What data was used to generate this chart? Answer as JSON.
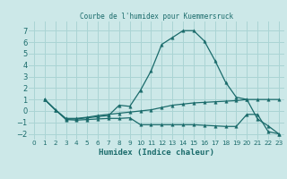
{
  "title": "Courbe de l'humidex pour Kuemmersruck",
  "xlabel": "Humidex (Indice chaleur)",
  "ylabel": "",
  "background_color": "#cce8e8",
  "grid_color": "#aad4d4",
  "line_color": "#1a6b6b",
  "xlim": [
    -0.5,
    23.5
  ],
  "ylim": [
    -2.5,
    7.8
  ],
  "xticks": [
    0,
    1,
    2,
    3,
    4,
    5,
    6,
    7,
    8,
    9,
    10,
    11,
    12,
    13,
    14,
    15,
    16,
    17,
    18,
    19,
    20,
    21,
    22,
    23
  ],
  "yticks": [
    -2,
    -1,
    0,
    1,
    2,
    3,
    4,
    5,
    6,
    7
  ],
  "line1_x": [
    1,
    2,
    3,
    4,
    5,
    6,
    7,
    8,
    9,
    10,
    11,
    12,
    13,
    14,
    15,
    16,
    17,
    18,
    19,
    20,
    21,
    22,
    23
  ],
  "line1_y": [
    1.0,
    0.1,
    -0.7,
    -0.7,
    -0.6,
    -0.5,
    -0.4,
    0.5,
    0.4,
    1.8,
    3.5,
    5.8,
    6.4,
    7.0,
    7.0,
    6.1,
    4.4,
    2.5,
    1.2,
    1.0,
    -0.7,
    -1.3,
    -2.0
  ],
  "line2_x": [
    1,
    2,
    3,
    4,
    5,
    6,
    7,
    8,
    9,
    10,
    11,
    12,
    13,
    14,
    15,
    16,
    17,
    18,
    19,
    20,
    21,
    22,
    23
  ],
  "line2_y": [
    1.0,
    0.1,
    -0.65,
    -0.65,
    -0.55,
    -0.4,
    -0.3,
    -0.2,
    -0.1,
    0.0,
    0.1,
    0.3,
    0.5,
    0.6,
    0.7,
    0.75,
    0.8,
    0.85,
    0.9,
    1.0,
    1.0,
    1.0,
    1.0
  ],
  "line3_x": [
    1,
    2,
    3,
    4,
    5,
    6,
    7,
    8,
    9,
    10,
    11,
    12,
    13,
    14,
    15,
    16,
    17,
    18,
    19,
    20,
    21,
    22,
    23
  ],
  "line3_y": [
    1.0,
    0.1,
    -0.75,
    -0.8,
    -0.75,
    -0.7,
    -0.65,
    -0.65,
    -0.6,
    -1.2,
    -1.2,
    -1.2,
    -1.2,
    -1.2,
    -1.2,
    -1.25,
    -1.3,
    -1.35,
    -1.35,
    -0.3,
    -0.3,
    -1.8,
    -2.0
  ]
}
